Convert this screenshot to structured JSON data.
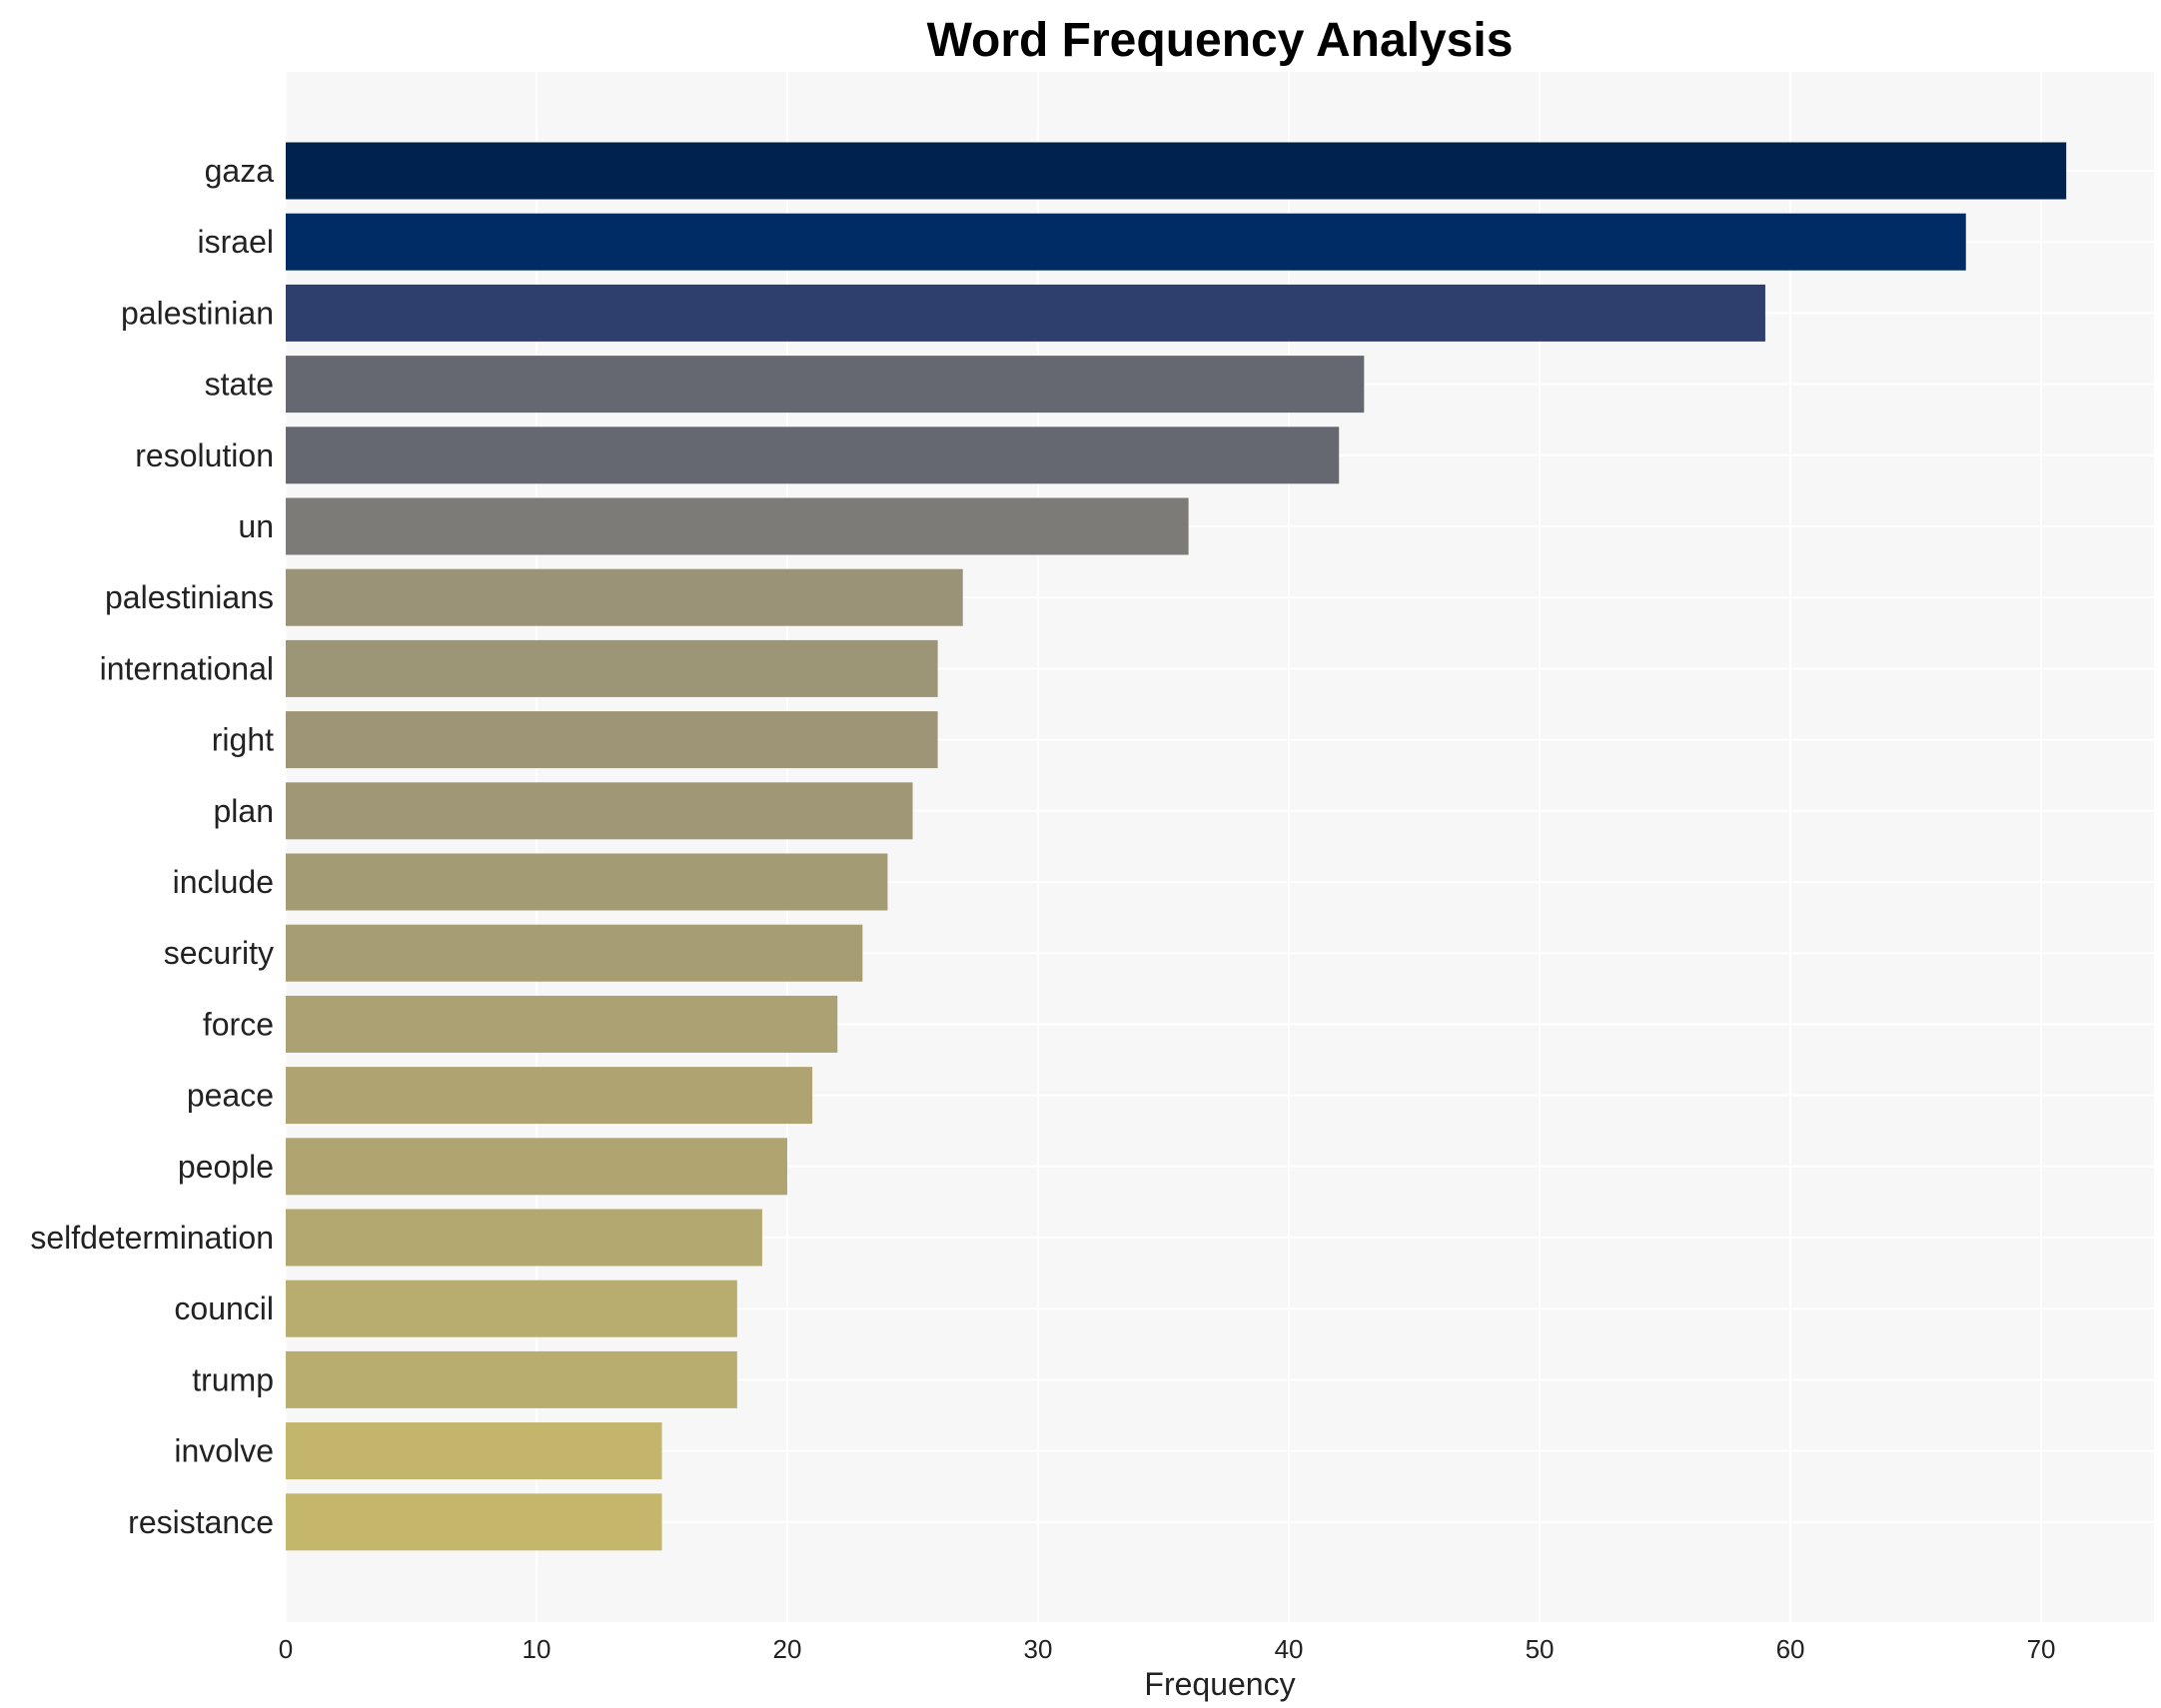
{
  "chart_data": {
    "type": "bar",
    "orientation": "horizontal",
    "title": "Word Frequency Analysis",
    "xlabel": "Frequency",
    "ylabel": "",
    "xlim": [
      0,
      74.5
    ],
    "xticks": [
      0,
      10,
      20,
      30,
      40,
      50,
      60,
      70
    ],
    "grid": true,
    "categories": [
      "gaza",
      "israel",
      "palestinian",
      "state",
      "resolution",
      "un",
      "palestinians",
      "international",
      "right",
      "plan",
      "include",
      "security",
      "force",
      "peace",
      "people",
      "selfdetermination",
      "council",
      "trump",
      "involve",
      "resistance"
    ],
    "values": [
      71,
      67,
      59,
      43,
      42,
      36,
      27,
      26,
      26,
      25,
      24,
      23,
      22,
      21,
      20,
      19,
      18,
      18,
      15,
      15
    ],
    "colors": [
      "#00224e",
      "#002c65",
      "#2e3f6e",
      "#656871",
      "#666871",
      "#7c7b78",
      "#9a9377",
      "#9c9576",
      "#9d9576",
      "#9f9775",
      "#a39b74",
      "#a69d73",
      "#aba172",
      "#aea371",
      "#b0a570",
      "#b3a86f",
      "#b8ac6e",
      "#b8ac6e",
      "#c3b56b",
      "#c4b66a"
    ]
  }
}
